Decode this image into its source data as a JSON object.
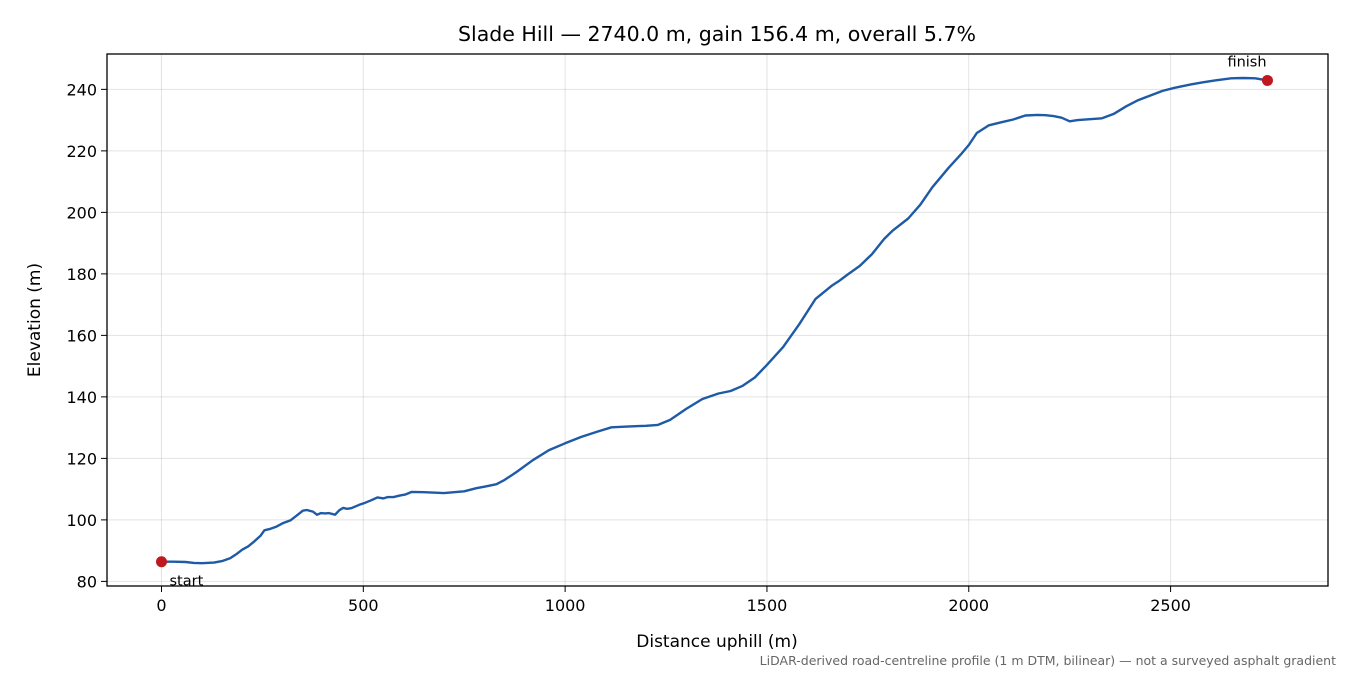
{
  "chart_data": {
    "type": "line",
    "title": "Slade Hill — 2740.0 m, gain 156.4 m, overall 5.7%",
    "xlabel": "Distance uphill (m)",
    "ylabel": "Elevation (m)",
    "xlim": [
      -135,
      2890
    ],
    "ylim": [
      78.5,
      251.5
    ],
    "xticks": [
      0,
      500,
      1000,
      1500,
      2000,
      2500
    ],
    "yticks": [
      80,
      100,
      120,
      140,
      160,
      180,
      200,
      220,
      240
    ],
    "grid": true,
    "line_color": "#1f5aa6",
    "marker_color": "#c0181f",
    "series": [
      {
        "x": [
          0,
          30,
          60,
          80,
          100,
          130,
          150,
          170,
          185,
          200,
          215,
          230,
          245,
          255,
          270,
          285,
          300,
          320,
          335,
          350,
          360,
          375,
          385,
          395,
          405,
          415,
          430,
          440,
          450,
          460,
          470,
          490,
          505,
          520,
          535,
          550,
          560,
          575,
          590,
          605,
          620,
          650,
          700,
          750,
          780,
          800,
          815,
          830,
          850,
          880,
          920,
          960,
          1000,
          1040,
          1080,
          1115,
          1160,
          1200,
          1230,
          1260,
          1300,
          1340,
          1380,
          1410,
          1440,
          1470,
          1500,
          1540,
          1580,
          1620,
          1660,
          1680,
          1700,
          1730,
          1760,
          1790,
          1810,
          1850,
          1880,
          1910,
          1950,
          1980,
          2000,
          2020,
          2050,
          2080,
          2110,
          2140,
          2170,
          2190,
          2210,
          2230,
          2250,
          2270,
          2300,
          2330,
          2360,
          2390,
          2420,
          2450,
          2480,
          2510,
          2550,
          2580,
          2610,
          2650,
          2680,
          2710,
          2740
        ],
        "y": [
          86.4,
          86.4,
          86.3,
          86.0,
          85.9,
          86.1,
          86.6,
          87.5,
          88.8,
          90.3,
          91.4,
          93.0,
          94.8,
          96.6,
          97.1,
          97.8,
          98.9,
          99.9,
          101.4,
          103.0,
          103.2,
          102.7,
          101.7,
          102.2,
          102.1,
          102.2,
          101.7,
          103.1,
          103.9,
          103.6,
          103.8,
          104.9,
          105.6,
          106.4,
          107.3,
          107.0,
          107.4,
          107.4,
          107.9,
          108.3,
          109.1,
          109.0,
          108.7,
          109.3,
          110.3,
          110.8,
          111.2,
          111.6,
          113.0,
          115.6,
          119.4,
          122.7,
          124.9,
          127.0,
          128.7,
          130.1,
          130.4,
          130.6,
          130.9,
          132.5,
          136.1,
          139.3,
          141.1,
          141.9,
          143.6,
          146.3,
          150.4,
          156.2,
          163.6,
          171.8,
          176.1,
          177.8,
          179.8,
          182.6,
          186.4,
          191.3,
          193.9,
          198.0,
          202.5,
          208.2,
          214.5,
          218.8,
          221.9,
          225.8,
          228.3,
          229.3,
          230.2,
          231.5,
          231.7,
          231.6,
          231.3,
          230.8,
          229.6,
          230.0,
          230.3,
          230.6,
          232.1,
          234.5,
          236.5,
          238.0,
          239.5,
          240.5,
          241.6,
          242.3,
          242.9,
          243.6,
          243.7,
          243.6,
          242.9
        ]
      }
    ],
    "points": [
      {
        "label": "start",
        "x": 0,
        "y": 86.4
      },
      {
        "label": "finish",
        "x": 2740,
        "y": 242.9
      }
    ],
    "footnote": "LiDAR-derived road-centreline profile (1 m DTM, bilinear) — not a surveyed asphalt gradient"
  }
}
